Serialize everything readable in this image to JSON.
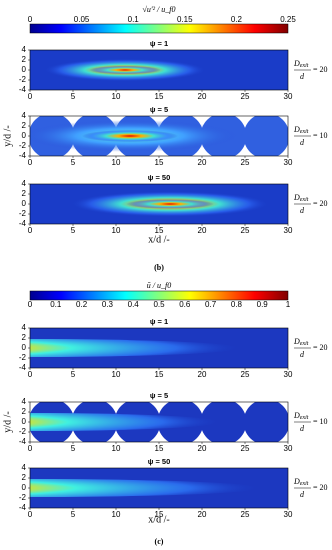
{
  "figures": [
    {
      "colorbar": {
        "label": "√u′² / u_f0",
        "ticks": [
          0,
          0.05,
          0.1,
          0.15,
          0.2,
          0.25
        ]
      },
      "plots": [
        {
          "title": "ψ = 1",
          "ratio_top": "D",
          "ratio_sub": "exit",
          "ratio_bottom": "d",
          "ratio_value": "= 20"
        },
        {
          "title": "ψ = 5",
          "ratio_top": "D",
          "ratio_sub": "exit",
          "ratio_bottom": "d",
          "ratio_value": "= 10"
        },
        {
          "title": "ψ = 50",
          "ratio_top": "D",
          "ratio_sub": "exit",
          "ratio_bottom": "d",
          "ratio_value": "= 20"
        }
      ],
      "y_ticks": [
        4,
        2,
        0,
        -2,
        -4
      ],
      "x_ticks": [
        0,
        5,
        10,
        15,
        20,
        25,
        30
      ],
      "y_label": "y/d /-",
      "x_label": "x/d /-",
      "caption": "(b)"
    },
    {
      "colorbar": {
        "label": "ū / u_f0",
        "ticks": [
          0,
          0.1,
          0.2,
          0.3,
          0.4,
          0.5,
          0.6,
          0.7,
          0.8,
          0.9,
          1
        ]
      },
      "plots": [
        {
          "title": "ψ = 1",
          "ratio_top": "D",
          "ratio_sub": "exit",
          "ratio_bottom": "d",
          "ratio_value": "= 20"
        },
        {
          "title": "ψ = 5",
          "ratio_top": "D",
          "ratio_sub": "exit",
          "ratio_bottom": "d",
          "ratio_value": "= 10"
        },
        {
          "title": "ψ = 50",
          "ratio_top": "D",
          "ratio_sub": "exit",
          "ratio_bottom": "d",
          "ratio_value": "= 20"
        }
      ],
      "y_ticks": [
        4,
        2,
        0,
        -2,
        -4
      ],
      "x_ticks": [
        0,
        5,
        10,
        15,
        20,
        25,
        30
      ],
      "y_label": "y/d /-",
      "x_label": "x/d /-",
      "caption": "(c)"
    }
  ]
}
